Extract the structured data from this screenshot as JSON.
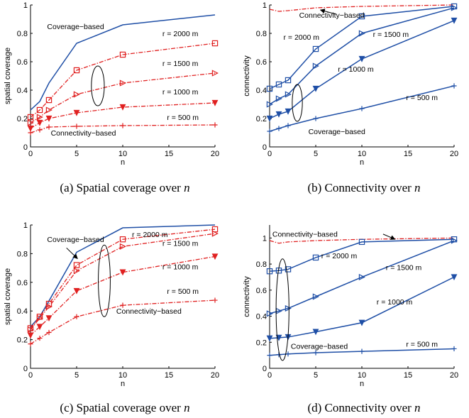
{
  "colors": {
    "blue": "#1f4fa6",
    "red": "#e02020",
    "axis": "#000000"
  },
  "chart_data": [
    {
      "id": "a",
      "type": "line",
      "ylabel": "spatial coverage",
      "xlabel": "n",
      "xlim": [
        0,
        20
      ],
      "ylim": [
        0,
        1
      ],
      "xticks": [
        "0",
        "5",
        "10",
        "15",
        "20"
      ],
      "yticks": [
        "0",
        "0.2",
        "0.4",
        "0.6",
        "0.8",
        "1"
      ],
      "caption_prefix": "(a)  Spatial coverage over ",
      "caption_var": "n",
      "series": [
        {
          "style": "blue",
          "marker": "none",
          "x": [
            0,
            1,
            2,
            5,
            10,
            20
          ],
          "y": [
            0.26,
            0.32,
            0.45,
            0.73,
            0.86,
            0.93
          ]
        },
        {
          "style": "red",
          "marker": "square",
          "x": [
            0,
            1,
            2,
            5,
            10,
            20
          ],
          "y": [
            0.21,
            0.26,
            0.33,
            0.54,
            0.65,
            0.73
          ]
        },
        {
          "style": "red",
          "marker": "triangle-right",
          "x": [
            0,
            1,
            2,
            5,
            10,
            20
          ],
          "y": [
            0.17,
            0.21,
            0.26,
            0.37,
            0.45,
            0.52
          ]
        },
        {
          "style": "red",
          "marker": "triangle-down",
          "x": [
            0,
            1,
            2,
            5,
            10,
            20
          ],
          "y": [
            0.13,
            0.17,
            0.2,
            0.24,
            0.28,
            0.31
          ]
        },
        {
          "style": "red",
          "marker": "plus",
          "x": [
            0,
            1,
            2,
            5,
            10,
            20
          ],
          "y": [
            0.1,
            0.12,
            0.14,
            0.145,
            0.15,
            0.155
          ]
        }
      ],
      "annotations": [
        {
          "text": "Coverage−based",
          "x": 1.8,
          "y": 0.83
        },
        {
          "text": "r = 2000 m",
          "x": 14.3,
          "y": 0.78
        },
        {
          "text": "r = 1500 m",
          "x": 14.3,
          "y": 0.57
        },
        {
          "text": "r = 1000 m",
          "x": 14.3,
          "y": 0.37
        },
        {
          "text": "r = 500 m",
          "x": 14.8,
          "y": 0.19
        },
        {
          "text": "Connectivity−based",
          "x": 2.2,
          "y": 0.08
        }
      ],
      "ellipses": [
        {
          "cx": 7.3,
          "cy": 0.43,
          "rx": 0.7,
          "ry": 0.14
        }
      ],
      "arrows": []
    },
    {
      "id": "b",
      "type": "line",
      "ylabel": "connectivity",
      "xlabel": "n",
      "xlim": [
        0,
        20
      ],
      "ylim": [
        0,
        1
      ],
      "xticks": [
        "0",
        "5",
        "10",
        "15",
        "20"
      ],
      "yticks": [
        "0",
        "0.2",
        "0.4",
        "0.6",
        "0.8",
        "1"
      ],
      "caption_prefix": "(b)  Connectivity over ",
      "caption_var": "n",
      "series": [
        {
          "style": "red",
          "marker": "none",
          "x": [
            0,
            1,
            2,
            5,
            10,
            20
          ],
          "y": [
            0.97,
            0.955,
            0.96,
            0.98,
            0.99,
            1.0
          ]
        },
        {
          "style": "blue",
          "marker": "square",
          "x": [
            0,
            1,
            2,
            5,
            10,
            20
          ],
          "y": [
            0.41,
            0.44,
            0.47,
            0.69,
            0.92,
            0.99
          ]
        },
        {
          "style": "blue",
          "marker": "triangle-right",
          "x": [
            0,
            1,
            2,
            5,
            10,
            20
          ],
          "y": [
            0.3,
            0.34,
            0.37,
            0.57,
            0.8,
            0.98
          ]
        },
        {
          "style": "blue",
          "marker": "triangle-down",
          "x": [
            0,
            1,
            2,
            5,
            10,
            20
          ],
          "y": [
            0.2,
            0.23,
            0.25,
            0.41,
            0.62,
            0.89
          ]
        },
        {
          "style": "blue",
          "marker": "plus",
          "x": [
            0,
            1,
            2,
            5,
            10,
            20
          ],
          "y": [
            0.11,
            0.13,
            0.15,
            0.2,
            0.27,
            0.43
          ]
        }
      ],
      "annotations": [
        {
          "text": "Connectivity−based",
          "x": 3.2,
          "y": 0.91
        },
        {
          "text": "r = 2000 m",
          "x": 1.5,
          "y": 0.755
        },
        {
          "text": "r = 1500 m",
          "x": 11.2,
          "y": 0.775
        },
        {
          "text": "r = 1000 m",
          "x": 7.4,
          "y": 0.53
        },
        {
          "text": "r = 500 m",
          "x": 14.8,
          "y": 0.33
        },
        {
          "text": "Coverage−based",
          "x": 4.2,
          "y": 0.09
        }
      ],
      "ellipses": [
        {
          "cx": 3.0,
          "cy": 0.31,
          "rx": 0.55,
          "ry": 0.13
        }
      ],
      "arrows": [
        {
          "x1": 7.2,
          "y1": 0.935,
          "x2": 5.5,
          "y2": 0.965
        }
      ]
    },
    {
      "id": "c",
      "type": "line",
      "ylabel": "spatial coverage",
      "xlabel": "n",
      "xlim": [
        0,
        20
      ],
      "ylim": [
        0,
        1
      ],
      "xticks": [
        "0",
        "5",
        "10",
        "15",
        "20"
      ],
      "yticks": [
        "0",
        "0.2",
        "0.4",
        "0.6",
        "0.8",
        "1"
      ],
      "caption_prefix": "(c)  Spatial coverage over ",
      "caption_var": "n",
      "series": [
        {
          "style": "blue",
          "marker": "none",
          "x": [
            0,
            1,
            2,
            5,
            10,
            20
          ],
          "y": [
            0.29,
            0.36,
            0.47,
            0.81,
            0.98,
            1.0
          ]
        },
        {
          "style": "red",
          "marker": "square",
          "x": [
            0,
            1,
            2,
            5,
            10,
            20
          ],
          "y": [
            0.28,
            0.36,
            0.45,
            0.72,
            0.9,
            0.97
          ]
        },
        {
          "style": "red",
          "marker": "triangle-right",
          "x": [
            0,
            1,
            2,
            5,
            10,
            20
          ],
          "y": [
            0.27,
            0.35,
            0.43,
            0.68,
            0.85,
            0.94
          ]
        },
        {
          "style": "red",
          "marker": "triangle-down",
          "x": [
            0,
            1,
            2,
            5,
            10,
            20
          ],
          "y": [
            0.23,
            0.29,
            0.35,
            0.54,
            0.67,
            0.78
          ]
        },
        {
          "style": "red",
          "marker": "plus",
          "x": [
            0,
            1,
            2,
            5,
            10,
            20
          ],
          "y": [
            0.17,
            0.21,
            0.25,
            0.36,
            0.44,
            0.475
          ]
        }
      ],
      "annotations": [
        {
          "text": "Coverage−based",
          "x": 1.8,
          "y": 0.88
        },
        {
          "text": "r = 2000 m",
          "x": 11.0,
          "y": 0.915
        },
        {
          "text": "r = 1500 m",
          "x": 14.3,
          "y": 0.855
        },
        {
          "text": "r = 1000 m",
          "x": 14.3,
          "y": 0.69
        },
        {
          "text": "r = 500 m",
          "x": 14.8,
          "y": 0.52
        },
        {
          "text": "Connectivity−based",
          "x": 9.3,
          "y": 0.38
        }
      ],
      "ellipses": [
        {
          "cx": 8.0,
          "cy": 0.61,
          "rx": 0.65,
          "ry": 0.25
        }
      ],
      "arrows": [
        {
          "x1": 3.9,
          "y1": 0.84,
          "x2": 5.1,
          "y2": 0.765
        }
      ]
    },
    {
      "id": "d",
      "type": "line",
      "ylabel": "connectivity",
      "xlabel": "n",
      "xlim": [
        0,
        20
      ],
      "ylim": [
        0,
        1.1
      ],
      "xticks": [
        "0",
        "5",
        "10",
        "15",
        "20"
      ],
      "yticks": [
        "0",
        "0.2",
        "0.4",
        "0.6",
        "0.8",
        "1"
      ],
      "caption_prefix": "(d)  Connectivity over ",
      "caption_var": "n",
      "series": [
        {
          "style": "red",
          "marker": "none",
          "x": [
            0,
            1,
            2,
            5,
            10,
            20
          ],
          "y": [
            0.98,
            0.96,
            0.97,
            0.98,
            0.99,
            1.0
          ]
        },
        {
          "style": "blue",
          "marker": "square",
          "x": [
            0,
            1,
            2,
            5,
            10,
            20
          ],
          "y": [
            0.745,
            0.75,
            0.76,
            0.85,
            0.97,
            0.99
          ]
        },
        {
          "style": "blue",
          "marker": "triangle-right",
          "x": [
            0,
            1,
            2,
            5,
            10,
            20
          ],
          "y": [
            0.42,
            0.44,
            0.46,
            0.55,
            0.7,
            0.98
          ]
        },
        {
          "style": "blue",
          "marker": "triangle-down",
          "x": [
            0,
            1,
            2,
            5,
            10,
            20
          ],
          "y": [
            0.23,
            0.235,
            0.24,
            0.28,
            0.35,
            0.7
          ]
        },
        {
          "style": "blue",
          "marker": "plus",
          "x": [
            0,
            1,
            2,
            5,
            10,
            20
          ],
          "y": [
            0.1,
            0.105,
            0.11,
            0.12,
            0.13,
            0.15
          ]
        }
      ],
      "annotations": [
        {
          "text": "Connectivity−based",
          "x": 0.3,
          "y": 1.01
        },
        {
          "text": "r = 2000 m",
          "x": 5.6,
          "y": 0.845
        },
        {
          "text": "r = 1500 m",
          "x": 12.6,
          "y": 0.755
        },
        {
          "text": "r = 1000 m",
          "x": 11.6,
          "y": 0.49
        },
        {
          "text": "r = 500 m",
          "x": 14.8,
          "y": 0.165
        },
        {
          "text": "Coverage−based",
          "x": 2.3,
          "y": 0.15
        }
      ],
      "ellipses": [
        {
          "cx": 1.4,
          "cy": 0.45,
          "rx": 0.7,
          "ry": 0.39
        }
      ],
      "arrows": [
        {
          "x1": 12.3,
          "y1": 1.03,
          "x2": 13.6,
          "y2": 0.99
        }
      ]
    }
  ]
}
